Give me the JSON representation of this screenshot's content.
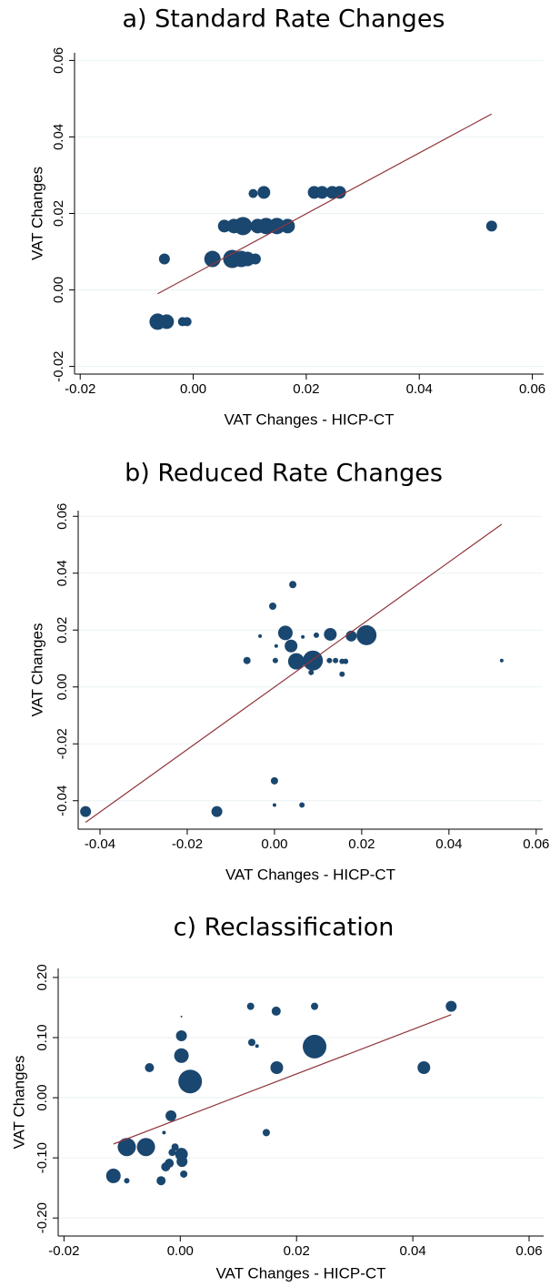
{
  "chart_data": [
    {
      "type": "scatter",
      "title": "a) Standard Rate Changes",
      "x_label": "VAT Changes - HICP-CT",
      "y_label": "VAT Changes",
      "xlim": [
        -0.021,
        0.062
      ],
      "ylim": [
        -0.022,
        0.062
      ],
      "xticks": [
        -0.02,
        {
          "value": 0,
          "label": "0.00"
        },
        0.02,
        0.04,
        0.06
      ],
      "yticks": [
        -0.02,
        {
          "value": 0,
          "label": "0.00"
        },
        0.02,
        0.04,
        0.06
      ],
      "grid": true,
      "series": [
        {
          "color": "#1a476f",
          "x": [
            -0.0063,
            -0.0047,
            -0.0019,
            -0.0011,
            -0.0051,
            0.0034,
            0.0069,
            0.0085,
            0.0096,
            0.011,
            0.0055,
            0.0072,
            0.0088,
            0.0114,
            0.0129,
            0.0148,
            0.0167,
            0.0528,
            0.0106,
            0.0125,
            0.0214,
            0.0228,
            0.0246,
            0.0259
          ],
          "y": [
            -0.0083,
            -0.0083,
            -0.0083,
            -0.0083,
            0.0081,
            0.0081,
            0.0081,
            0.0081,
            0.0081,
            0.0081,
            0.0167,
            0.0167,
            0.0167,
            0.0167,
            0.0167,
            0.0167,
            0.0167,
            0.0167,
            0.0252,
            0.0255,
            0.0255,
            0.0255,
            0.0255,
            0.0255
          ],
          "sizes": [
            81,
            64,
            25,
            25,
            36,
            81,
            100,
            81,
            64,
            36,
            49,
            64,
            100,
            64,
            81,
            81,
            64,
            36,
            25,
            49,
            49,
            49,
            49,
            49
          ]
        }
      ],
      "fit": {
        "color": "#90353b",
        "x": [
          -0.0063,
          0.0528
        ],
        "y": [
          -0.001,
          0.046
        ]
      }
    },
    {
      "type": "scatter",
      "title": "b) Reduced Rate Changes",
      "x_label": "VAT Changes - HICP-CT",
      "y_label": "VAT Changes",
      "xlim": [
        -0.045,
        0.0615
      ],
      "ylim": [
        -0.05,
        0.062
      ],
      "xticks": [
        -0.04,
        -0.02,
        {
          "value": 0,
          "label": "0.00"
        },
        0.02,
        0.04,
        0.06
      ],
      "yticks": [
        -0.04,
        -0.02,
        {
          "value": 0,
          "label": "0.00"
        },
        0.02,
        0.04,
        0.06
      ],
      "grid": true,
      "series": [
        {
          "color": "#1a476f",
          "x": [
            -0.0433,
            -0.0132,
            0.0,
            0.0,
            0.0063,
            0.0042,
            -0.0004,
            0.0025,
            -0.0033,
            0.0038,
            0.0004,
            -0.0063,
            0.0002,
            0.005,
            0.0088,
            0.0065,
            0.0096,
            0.0128,
            0.0176,
            0.0211,
            0.0126,
            0.014,
            0.0155,
            0.0163,
            0.0155,
            0.0084,
            0.0521
          ],
          "y": [
            -0.0438,
            -0.0438,
            -0.033,
            -0.0415,
            -0.0415,
            0.036,
            0.0284,
            0.019,
            0.0179,
            0.0144,
            0.0144,
            0.0093,
            0.0093,
            0.009,
            0.0093,
            0.0176,
            0.0182,
            0.0185,
            0.0179,
            0.0182,
            0.0093,
            0.0093,
            0.009,
            0.009,
            0.0045,
            0.0051,
            0.0093
          ],
          "sizes": [
            36,
            36,
            16,
            4,
            9,
            16,
            16,
            64,
            4,
            49,
            4,
            16,
            9,
            81,
            121,
            4,
            9,
            49,
            36,
            121,
            9,
            9,
            9,
            9,
            9,
            9,
            4
          ]
        }
      ],
      "fit": {
        "color": "#90353b",
        "x": [
          -0.0433,
          0.0521
        ],
        "y": [
          -0.0476,
          0.0572
        ]
      }
    },
    {
      "type": "scatter",
      "title": "c) Reclassification",
      "x_label": "VAT Changes - HICP-CT",
      "y_label": "VAT Changes",
      "xlim": [
        -0.021,
        0.0625
      ],
      "ylim": [
        -0.23,
        0.215
      ],
      "xticks": [
        -0.02,
        {
          "value": 0,
          "label": "0.00"
        },
        0.02,
        0.04,
        0.06
      ],
      "yticks": [
        {
          "value": -0.2,
          "label": "-0.20"
        },
        {
          "value": -0.1,
          "label": "-0.10"
        },
        {
          "value": 0,
          "label": "0.00"
        },
        {
          "value": 0.1,
          "label": "0.10"
        },
        {
          "value": 0.2,
          "label": "0.20"
        }
      ],
      "grid": true,
      "series": [
        {
          "color": "#1a476f",
          "x": [
            -0.0115,
            -0.0092,
            -0.0092,
            -0.0059,
            -0.0053,
            -0.0028,
            -0.0033,
            -0.0025,
            -0.0019,
            -0.0016,
            -0.0014,
            -0.0009,
            0.0002,
            0.0002,
            0.0002,
            0.0003,
            0.0006,
            0.0002,
            0.0017,
            0.0121,
            0.0123,
            0.0132,
            0.0148,
            0.0165,
            0.0166,
            0.0231,
            0.0231,
            0.0419,
            0.0466
          ],
          "y": [
            -0.13,
            -0.082,
            -0.138,
            -0.082,
            0.05,
            -0.058,
            -0.138,
            -0.115,
            -0.109,
            -0.03,
            -0.091,
            -0.082,
            0.103,
            0.07,
            -0.094,
            -0.106,
            -0.127,
            0.135,
            0.027,
            0.152,
            0.092,
            0.086,
            -0.058,
            0.144,
            0.05,
            0.085,
            0.152,
            0.05,
            0.152
          ],
          "sizes": [
            64,
            100,
            9,
            100,
            25,
            4,
            25,
            25,
            25,
            36,
            16,
            16,
            36,
            64,
            49,
            36,
            16,
            1,
            169,
            16,
            16,
            4,
            16,
            25,
            49,
            169,
            16,
            49,
            36
          ]
        }
      ],
      "fit": {
        "color": "#90353b",
        "x": [
          -0.0115,
          0.0466
        ],
        "y": [
          -0.077,
          0.138
        ]
      }
    }
  ]
}
